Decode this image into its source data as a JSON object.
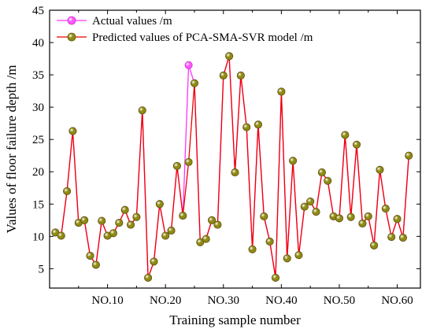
{
  "chart_data": {
    "type": "line",
    "xlabel": "Training sample number",
    "ylabel": "Values of floor failure depth /m",
    "xlim": [
      0,
      64
    ],
    "ylim": [
      2,
      45
    ],
    "yticks": [
      5,
      10,
      15,
      20,
      25,
      30,
      35,
      40,
      45
    ],
    "xticks": [
      10,
      20,
      30,
      40,
      50,
      60
    ],
    "xtick_labels": [
      "NO.10",
      "NO.20",
      "NO.30",
      "NO.40",
      "NO.50",
      "NO.60"
    ],
    "legend_position": "top-left",
    "series": [
      {
        "name": "Actual values /m",
        "color": "#ff33ff",
        "marker_color": "#ff55ff",
        "values": [
          10.6,
          10.1,
          17.0,
          26.3,
          12.1,
          12.5,
          7.0,
          5.6,
          12.4,
          10.1,
          10.5,
          12.1,
          14.1,
          11.8,
          13.0,
          29.5,
          3.6,
          6.1,
          15.0,
          10.1,
          10.9,
          20.9,
          13.2,
          36.5,
          33.7,
          9.1,
          9.6,
          12.5,
          11.8,
          34.9,
          37.9,
          19.9,
          34.9,
          26.9,
          8.0,
          27.3,
          13.1,
          9.2,
          3.6,
          32.4,
          6.6,
          21.7,
          7.1,
          14.6,
          15.4,
          13.8,
          19.9,
          18.6,
          13.1,
          12.8,
          25.7,
          13.0,
          24.2,
          12.0,
          13.1,
          8.6,
          20.3,
          14.3,
          9.9,
          12.7,
          9.8,
          22.5
        ]
      },
      {
        "name": "Predicted values of PCA-SMA-SVR model /m",
        "color": "#ee0000",
        "marker_color": "#8f8a12",
        "values": [
          10.6,
          10.1,
          17.0,
          26.3,
          12.1,
          12.5,
          7.0,
          5.6,
          12.4,
          10.1,
          10.5,
          12.1,
          14.1,
          11.8,
          13.0,
          29.5,
          3.6,
          6.1,
          15.0,
          10.1,
          10.9,
          20.9,
          13.2,
          21.5,
          33.7,
          9.1,
          9.6,
          12.5,
          11.8,
          34.9,
          37.9,
          19.9,
          34.9,
          26.9,
          8.0,
          27.3,
          13.1,
          9.2,
          3.6,
          32.4,
          6.6,
          21.7,
          7.1,
          14.6,
          15.4,
          13.8,
          19.9,
          18.6,
          13.1,
          12.8,
          25.7,
          13.0,
          24.2,
          12.0,
          13.1,
          8.6,
          20.3,
          14.3,
          9.9,
          12.7,
          9.8,
          22.5
        ]
      }
    ]
  }
}
